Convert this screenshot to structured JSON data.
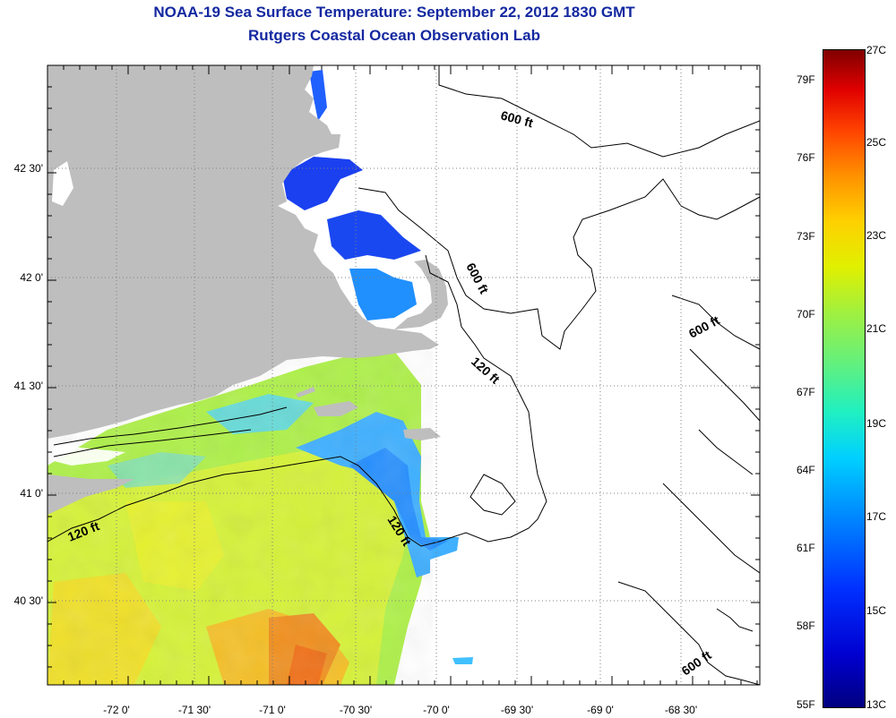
{
  "title": {
    "line1": "NOAA-19 Sea Surface Temperature:  September 22, 2012 1830 GMT",
    "line2": "Rutgers Coastal Ocean Observation Lab"
  },
  "map": {
    "land_color": "#bebebe",
    "water_color": "#ffffff",
    "lon_labels": [
      "-72 0'",
      "-71 30'",
      "-71 0'",
      "-70 30'",
      "-70 0'",
      "-69 30'",
      "-69 0'",
      "-68 30'"
    ],
    "lat_labels": [
      "42 30'",
      "42 0'",
      "41 30'",
      "41 0'",
      "40 30'"
    ],
    "contour_labels": [
      "600 ft",
      "600 ft",
      "600 ft",
      "600 ft",
      "120 ft",
      "120 ft",
      "120 ft"
    ]
  },
  "colorbar": {
    "fahrenheit": [
      "79F",
      "76F",
      "73F",
      "70F",
      "67F",
      "64F",
      "61F",
      "58F",
      "55F"
    ],
    "celsius": [
      "27C",
      "25C",
      "23C",
      "21C",
      "19C",
      "17C",
      "15C",
      "13C"
    ]
  }
}
